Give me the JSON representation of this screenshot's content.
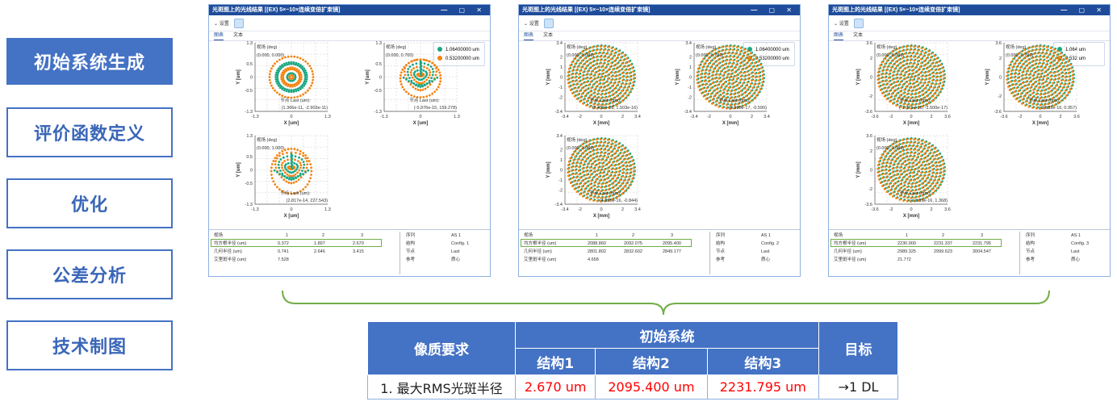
{
  "sidebar": {
    "items": [
      {
        "label": "初始系统生成",
        "active": true
      },
      {
        "label": "评价函数定义"
      },
      {
        "label": "优化"
      },
      {
        "label": "公差分析"
      },
      {
        "label": "技术制图"
      }
    ]
  },
  "colors": {
    "accent": "#4472c4",
    "title_bar": "#1e4c9a",
    "wave1": "#1aa683",
    "wave2": "#f5820f",
    "highlight": "#70ad47",
    "bad_value": "#ff0000"
  },
  "windows": [
    {
      "title": "光斑图上的光线结果 [(EX) 5×~10×连续变倍扩束镜]",
      "settings": "设置",
      "tabs": [
        "图表",
        "文本"
      ],
      "legend": [
        "1.06400000 um",
        "0.53200000 um"
      ],
      "unit": "um",
      "xlabel": "X [um]",
      "ylabel": "Y [um]",
      "range": 1.3,
      "yticks": [
        "1.3",
        "0.5",
        "0",
        "-0.5",
        "-1.3"
      ],
      "xticks": [
        "-1.3",
        "0",
        "1.3"
      ],
      "plots": [
        {
          "field_label": "视场 (deg)",
          "field": "(0.000, 0.000)",
          "node_label": "节点 Last (um):",
          "centroid": "(1.366e-11, -2.903e-11)",
          "pattern": "rings"
        },
        {
          "field_label": "视场 (deg)",
          "field": "(0.000, 0.700)",
          "node_label": "节点 Last (um):",
          "centroid": "(-5.976e-15, 159.278)",
          "pattern": "tear"
        },
        {
          "field_label": "视场 (deg)",
          "field": "(0.000, 1.000)",
          "node_label": "节点 Last (um):",
          "centroid": "(2.817e-14, 227.543)",
          "pattern": "tear2"
        }
      ],
      "results": {
        "header": [
          "视场",
          "1",
          "2",
          "3"
        ],
        "rows": [
          {
            "label": "均方根半径 (um)",
            "values": [
              "0.372",
              "1.897",
              "2.670"
            ]
          },
          {
            "label": "几何半径 (um)",
            "values": [
              "0.741",
              "2.646",
              "3.415"
            ]
          },
          {
            "label": "艾里斑半径 (um)",
            "values": [
              "7.528"
            ]
          }
        ],
        "info": [
          [
            "序列",
            "AS 1"
          ],
          [
            "结构",
            "Config. 1"
          ],
          [
            "节点",
            "Last"
          ],
          [
            "参考",
            "质心"
          ]
        ]
      }
    },
    {
      "title": "光斑图上的光线结果 [(EX) 5×~10×连续变倍扩束镜]",
      "settings": "设置",
      "tabs": [
        "图表",
        "文本"
      ],
      "legend": [
        "1.06400000 um",
        "0.53200000 um"
      ],
      "unit": "mm",
      "xlabel": "X [mm]",
      "ylabel": "Y [mm]",
      "range": 3.4,
      "yticks": [
        "3.4",
        "2",
        "1",
        "0",
        "-1",
        "-2",
        "-3.4"
      ],
      "xticks": [
        "-3.4",
        "-2",
        "0",
        "2",
        "3.4"
      ],
      "plots": [
        {
          "field_label": "视场 (deg)",
          "field": "(0.000, 0.000)",
          "node_label": "节点 Last (mm):",
          "centroid": "(2.459e-16, 1.503e-16)",
          "pattern": "grid"
        },
        {
          "field_label": "视场 (deg)",
          "field": "(0.000, 0.700)",
          "node_label": "节点 Last (mm):",
          "centroid": "(8.196e-17, -0.590)",
          "pattern": "grid"
        },
        {
          "field_label": "视场 (deg)",
          "field": "(0.000, 1.000)",
          "node_label": "节点 Last (mm):",
          "centroid": "(4.656e-16, -0.844)",
          "pattern": "grid"
        }
      ],
      "results": {
        "header": [
          "视场",
          "1",
          "2",
          "3"
        ],
        "rows": [
          {
            "label": "均方根半径 (um)",
            "values": [
              "2088.860",
              "2092.075",
              "2095.400"
            ]
          },
          {
            "label": "几何半径 (um)",
            "values": [
              "2801.802",
              "2832.602",
              "2849.177"
            ]
          },
          {
            "label": "艾里斑半径 (um)",
            "values": [
              "4.658"
            ]
          }
        ],
        "info": [
          [
            "序列",
            "AS 1"
          ],
          [
            "结构",
            "Config. 2"
          ],
          [
            "节点",
            "Last"
          ],
          [
            "参考",
            "质心"
          ]
        ]
      }
    },
    {
      "title": "光斑图上的光线结果 [(EX) 5×~10×连续变倍扩束镜]",
      "settings": "设置",
      "tabs": [
        "图表",
        "文本"
      ],
      "legend": [
        "1.064 um",
        "0.532 um"
      ],
      "unit": "mm",
      "xlabel": "X [mm]",
      "ylabel": "Y [mm]",
      "range": 3.6,
      "yticks": [
        "3.6",
        "2",
        "0",
        "-2",
        "-3.6"
      ],
      "xticks": [
        "-3.6",
        "-2",
        "0",
        "2",
        "3.6"
      ],
      "plots": [
        {
          "field_label": "视场 (deg)",
          "field": "(0.000, 0.000)",
          "node_label": "节点 Last (mm):",
          "centroid": "(-1.371e-16, -3.500e-17)",
          "pattern": "grid"
        },
        {
          "field_label": "视场 (deg)",
          "field": "(0.000, 0.700)",
          "node_label": "节点 Last (mm):",
          "centroid": "(-2.581e-16, 0.957)",
          "pattern": "grid"
        },
        {
          "field_label": "视场 (deg)",
          "field": "(0.000, 1.000)",
          "node_label": "节点 Last (mm):",
          "centroid": "(-1.195e-16, 1.368)",
          "pattern": "grid"
        }
      ],
      "results": {
        "header": [
          "视场",
          "1",
          "2",
          "3"
        ],
        "rows": [
          {
            "label": "均方根半径 (um)",
            "values": [
              "2230.900",
              "2231.337",
              "2231.795"
            ]
          },
          {
            "label": "几何半径 (um)",
            "values": [
              "2989.325",
              "2999.623",
              "3004.547"
            ]
          },
          {
            "label": "艾里斑半径 (um)",
            "values": [
              "21.772"
            ]
          }
        ],
        "info": [
          [
            "序列",
            "AS 1"
          ],
          [
            "结构",
            "Config. 3"
          ],
          [
            "节点",
            "Last"
          ],
          [
            "参考",
            "质心"
          ]
        ]
      }
    }
  ],
  "summary": {
    "header_req": "像质要求",
    "header_group": "初始系统",
    "configs": [
      "结构1",
      "结构2",
      "结构3"
    ],
    "header_target": "目标",
    "row": {
      "label": "1. 最大RMS光斑半径",
      "values": [
        "2.670 um",
        "2095.400 um",
        "2231.795 um"
      ],
      "target": "→1 DL"
    }
  }
}
